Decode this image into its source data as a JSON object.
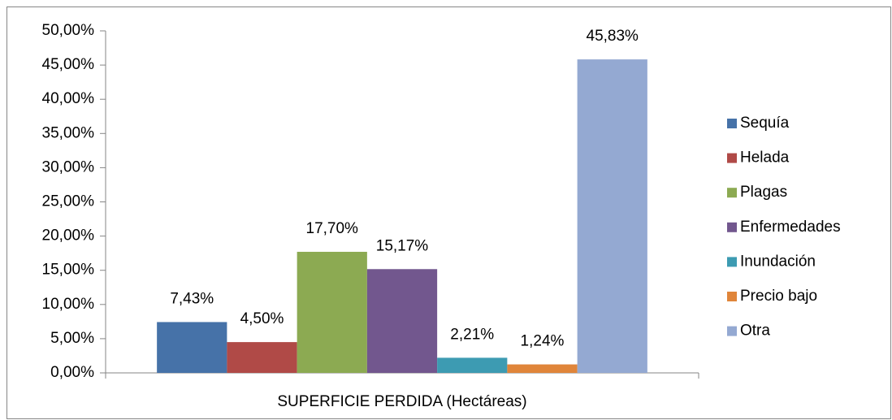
{
  "chart_data": {
    "type": "bar",
    "categories": [
      "SUPERFICIE PERDIDA (Hectáreas)"
    ],
    "series": [
      {
        "name": "Sequía",
        "color": "#4672a8",
        "values": [
          7.43
        ],
        "value_labels": [
          "7,43%"
        ]
      },
      {
        "name": "Helada",
        "color": "#b04a47",
        "values": [
          4.5
        ],
        "value_labels": [
          "4,50%"
        ]
      },
      {
        "name": "Plagas",
        "color": "#8caa52",
        "values": [
          17.7
        ],
        "value_labels": [
          "17,70%"
        ]
      },
      {
        "name": "Enfermedades",
        "color": "#72578e",
        "values": [
          15.17
        ],
        "value_labels": [
          "15,17%"
        ]
      },
      {
        "name": "Inundación",
        "color": "#3d9bb2",
        "values": [
          2.21
        ],
        "value_labels": [
          "2,21%"
        ]
      },
      {
        "name": "Precio bajo",
        "color": "#e0853a",
        "values": [
          1.24
        ],
        "value_labels": [
          "1,24%"
        ]
      },
      {
        "name": "Otra",
        "color": "#94a9d2",
        "values": [
          45.83
        ],
        "value_labels": [
          "45,83%"
        ]
      }
    ],
    "ylim": [
      0,
      50
    ],
    "yticks": [
      {
        "value": 0,
        "label": "0,00%"
      },
      {
        "value": 5,
        "label": "5,00%"
      },
      {
        "value": 10,
        "label": "10,00%"
      },
      {
        "value": 15,
        "label": "15,00%"
      },
      {
        "value": 20,
        "label": "20,00%"
      },
      {
        "value": 25,
        "label": "25,00%"
      },
      {
        "value": 30,
        "label": "30,00%"
      },
      {
        "value": 35,
        "label": "35,00%"
      },
      {
        "value": 40,
        "label": "40,00%"
      },
      {
        "value": 45,
        "label": "45,00%"
      },
      {
        "value": 50,
        "label": "50,00%"
      }
    ],
    "grid": false,
    "legend": "right"
  }
}
